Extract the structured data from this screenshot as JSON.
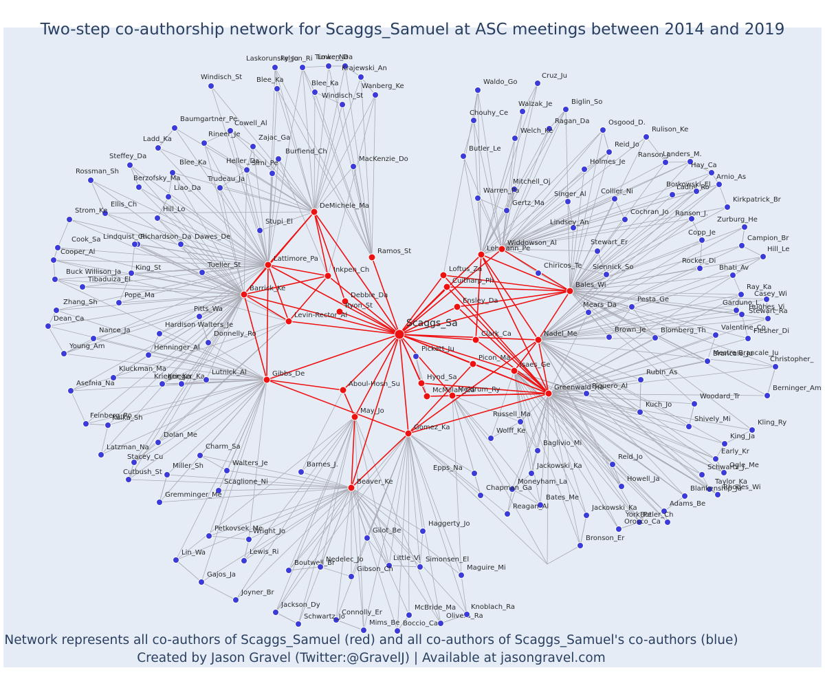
{
  "title": "Two-step co-authorship network for Scaggs_Samuel at ASC meetings between 2014 and 2019",
  "caption_line1": "Network represents all co-authors of Scaggs_Samuel (red) and all co-authors of Scaggs_Samuel's co-authors (blue)",
  "caption_line2": "Created by Jason Gravel (Twitter:@GravelJ) | Available at jasongravel.com",
  "colors": {
    "first_degree": "#ee1111",
    "second_degree": "#3b3bd9",
    "edge_first": "#ee1111",
    "edge_second": "#a9a9b2",
    "background": "#e5ecf6"
  },
  "center": "Scaggs_Sa",
  "red_nodes": [
    "DeMichele_Ma",
    "Ramos_St",
    "Lattimore_Pa",
    "Inkpen_Ch",
    "Barrick_Ke",
    "Debbie_Da",
    "Ryon_St",
    "Levin-Rector_Al",
    "Gibbs_De",
    "Aboul-Hosn_Su",
    "May_Jo",
    "Beaver_Ke",
    "Hynd_Sa",
    "McMillan_Ca",
    "Meldrum_Ry",
    "Gomez_Ka",
    "Picon_Ma",
    "Isaes_Ge",
    "Clark_Ca",
    "Nadel_Me",
    "Greenwald_Ha",
    "Ensley_Da",
    "Cuitharp_Ph",
    "Loftus_Za",
    "Lehmann_Pe",
    "Widdowson_Al",
    "Bales_Wi"
  ],
  "blue_nodes": [
    "Felson_Ri",
    "Timken_Da",
    "Lowe_Na",
    "Laskorunsky_Ju",
    "Krajewski_An",
    "Windisch_St",
    "Blee_Ka",
    "Blee_Ka",
    "Windisch_St",
    "Wanberg_Ke",
    "Baumgartner_Pe",
    "Cowell_Al",
    "Rineer_Je",
    "Zajac_Ga",
    "Ladd_Ka",
    "Burfiend_Ch",
    "Steffey_Da",
    "Simi_Pe",
    "Blee_Ka",
    "MacKenzie_Do",
    "Rossman_Sh",
    "Heller_Da",
    "Berzofsky_Ma",
    "Liao_Da",
    "Ellis_Ch",
    "Hill_Lo",
    "Strom_Ke",
    "Trudeau_Ja",
    "Stupi_El",
    "Lindquist_Ch",
    "Richardson_Da",
    "Dawes_De",
    "Cook_Sa",
    "Cooper_Al",
    "King_St",
    "Tueller_St",
    "Buck Willison_Ja",
    "Tibaduiza_El",
    "Pope_Ma",
    "Zhang_Sh",
    "Pitts_Wa",
    "Dean_Ca",
    "Hardison Walters_Je",
    "Nance_Ja",
    "Donnelly_Ro",
    "Young_Am",
    "Henninger_Al",
    "Kluckman_Ma",
    "Krieger_Ka",
    "Krieger_Ka",
    "Lutnick_Al",
    "Asefnia_Na",
    "Feinberg_Ro",
    "Kulka_Sh",
    "Dolan_Me",
    "Charm_Sa",
    "Latzman_Na",
    "Stacey_Cu",
    "Miller_Sh",
    "Walters_Je",
    "Cutbush_St",
    "Scaglione_Ni",
    "Gremminger_Me",
    "Barnes_J.",
    "Petkovsek_Me",
    "Wright_Jo",
    "Lin_Wa",
    "Lewis_Ri",
    "Gajos_Ja",
    "Boutwell_Br",
    "Nedelec_Jo",
    "Joyner_Br",
    "Jackson_Dy",
    "Connolly_Er",
    "Schwartz_Jo",
    "Mims_Be",
    "Boccio_Ca",
    "McBride_Ma",
    "Olivera_Ra",
    "Knoblach_Ra",
    "Gilot_Be",
    "Little_Vi",
    "Simonsen_El",
    "Gibson_Ch",
    "Maguire_Mi",
    "Haggerty_Jo",
    "Pickett_Ju",
    "Waldo_Go",
    "Cruz_Ju",
    "Walzak_Je",
    "Biglin_So",
    "Chouhy_Ce",
    "Ragan_Da",
    "Osgood_D.",
    "Rulison_Ke",
    "Welch_Ke",
    "Reid_Jo",
    "Butler_Le",
    "Ranson_J.",
    "Landers_M.",
    "Hay_Ca",
    "Holmes_Je",
    "Arnio_As",
    "Mitchell_Oj",
    "Ladny_Ro",
    "Borkowski_El",
    "Warren_Pa",
    "Singer_Al",
    "Collier_Ni",
    "Gertz_Ma",
    "Kirkpatrick_Br",
    "Ranson_J.",
    "Cochran_Jo",
    "Zurburg_He",
    "Lindsey_An",
    "Campion_Br",
    "Copp_Je",
    "Hill_Le",
    "Stewart_Er",
    "Chiricos_Te",
    "Siennick_So",
    "Rocker_Di",
    "Bhati_Av",
    "Ray_Ka",
    "Casey_Wi",
    "Pesta_Ge",
    "Mears_Da",
    "Garduno_L.",
    "Hughes_Vi",
    "Stewart_Ra",
    "Valentine_Co",
    "Brown_Je",
    "Blomberg_Th",
    "Flesher_Di",
    "Mestre Brancale_Ju",
    "Christopher_",
    "Brancale_Ju",
    "Rubin_As",
    "Piquero_Al",
    "Berninger_Am",
    "Woodard_Tr",
    "Kuch_Jo",
    "Shively_Mi",
    "Kling_Ry",
    "Russell_Ma",
    "King_Ja",
    "Wolff_Ke",
    "Early_Kr",
    "Baglivio_Mi",
    "Schwartz_J.",
    "Ogle_Me",
    "Reid_Jo",
    "Jackowski_Ka",
    "Howell_Ja",
    "Epps_Na",
    "Moneyham_La",
    "Taylor_Ka",
    "Rhodes_Wi",
    "Chapman_Ga",
    "Blankenship_Ju",
    "Adams_Be",
    "Butler_Ch",
    "Bates_Me",
    "Reagan_Al",
    "Jackowski_Ka",
    "York_Pe",
    "Orosco_Ca",
    "Bronson_Er"
  ]
}
